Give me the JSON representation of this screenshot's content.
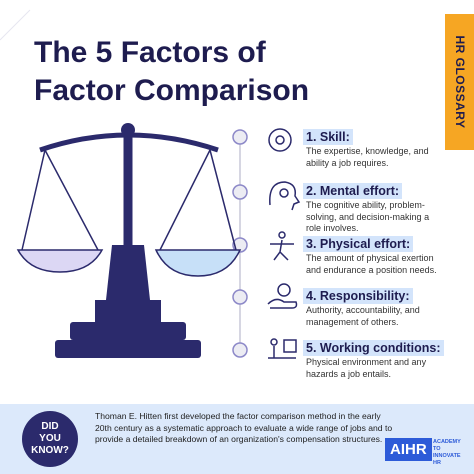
{
  "title": "The 5 Factors of Factor Comparison",
  "tab": "HR GLOSSARY",
  "factors": [
    {
      "title": "1. Skill:",
      "description": "The expertise, knowledge, and ability a job requires."
    },
    {
      "title": "2. Mental effort:",
      "description": "The cognitive ability, problem-solving, and decision-making a role involves."
    },
    {
      "title": "3. Physical effort:",
      "description": "The amount of physical exertion and endurance a position needs."
    },
    {
      "title": "4. Responsibility:",
      "description": "Authority, accountability, and management of others."
    },
    {
      "title": "5. Working conditions:",
      "description": "Physical environment and any hazards a job entails."
    }
  ],
  "did_you_know": {
    "badge": "DID YOU KNOW?",
    "text": "Thoman E. Hitten first developed the factor comparison method in the early 20th century as a systematic approach to evaluate a wide range of jobs and to provide a detailed breakdown of an organization's compensation structures."
  },
  "logo": {
    "name": "AIHR",
    "tagline": "ACADEMY TO INNOVATE HR"
  }
}
